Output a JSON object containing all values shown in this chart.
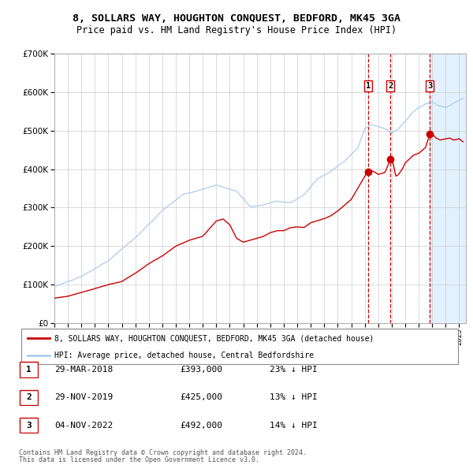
{
  "title": "8, SOLLARS WAY, HOUGHTON CONQUEST, BEDFORD, MK45 3GA",
  "subtitle": "Price paid vs. HM Land Registry's House Price Index (HPI)",
  "legend_red": "8, SOLLARS WAY, HOUGHTON CONQUEST, BEDFORD, MK45 3GA (detached house)",
  "legend_blue": "HPI: Average price, detached house, Central Bedfordshire",
  "footnote1": "Contains HM Land Registry data © Crown copyright and database right 2024.",
  "footnote2": "This data is licensed under the Open Government Licence v3.0.",
  "transactions": [
    {
      "num": 1,
      "date": "29-MAR-2018",
      "price": 393000,
      "hpi_pct": "23%",
      "x_year": 2018.24
    },
    {
      "num": 2,
      "date": "29-NOV-2019",
      "price": 425000,
      "hpi_pct": "13%",
      "x_year": 2019.91
    },
    {
      "num": 3,
      "date": "04-NOV-2022",
      "price": 492000,
      "hpi_pct": "14%",
      "x_year": 2022.84
    }
  ],
  "ylim": [
    0,
    700000
  ],
  "yticks": [
    0,
    100000,
    200000,
    300000,
    400000,
    500000,
    600000,
    700000
  ],
  "xlim_start": 1995.0,
  "xlim_end": 2025.5,
  "background_color": "#ffffff",
  "grid_color": "#cccccc",
  "red_color": "#cc0000",
  "blue_color": "#aaccee",
  "shade_color": "#ddeeff"
}
